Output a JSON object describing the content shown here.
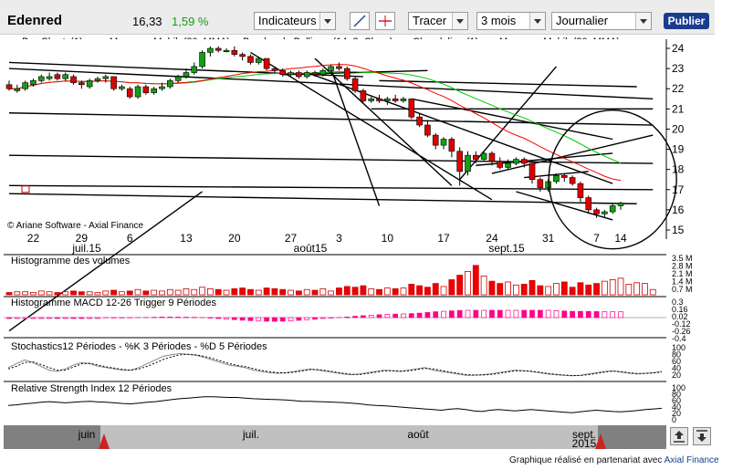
{
  "header": {
    "ticker": "Edenred",
    "price": "16,33",
    "change": "1,59 %",
    "indicators_label": "Indicateurs",
    "draw_label": "Tracer",
    "period": "3 mois",
    "frequency": "Journalier",
    "publish_label": "Publier"
  },
  "legend": [
    {
      "label": "Bar-Charts(1)",
      "color": "#cc0000"
    },
    {
      "label": "Moyenne Mobile(20, MMA)",
      "color": "#ff0000"
    },
    {
      "label": "Bandes de Bollinger(14, 2, Close)",
      "color": ""
    },
    {
      "label": "Chandeliers(1)",
      "color": "#cc0000"
    },
    {
      "label": "Moyenne Mobile(30, MMA)",
      "color": "#00cc00"
    }
  ],
  "watermark": "© Ariane Software - Axial Finance",
  "chart_data": [
    {
      "type": "candlestick",
      "ylim": [
        15,
        24
      ],
      "yticks": [
        15,
        16,
        17,
        18,
        19,
        20,
        21,
        22,
        23,
        24
      ],
      "xticks": [
        "22",
        "29",
        "6",
        "13",
        "20",
        "27",
        "3",
        "10",
        "17",
        "24",
        "31",
        "7",
        "14"
      ],
      "period_labels": [
        "juil.15",
        "août15",
        "sept.15"
      ],
      "candles": [
        {
          "o": 22.2,
          "c": 22.0,
          "h": 22.4,
          "l": 21.9
        },
        {
          "o": 21.9,
          "c": 22.0,
          "h": 22.2,
          "l": 21.8
        },
        {
          "o": 22.0,
          "c": 22.3,
          "h": 22.4,
          "l": 21.9
        },
        {
          "o": 22.2,
          "c": 22.4,
          "h": 22.5,
          "l": 22.1
        },
        {
          "o": 22.4,
          "c": 22.6,
          "h": 22.7,
          "l": 22.3
        },
        {
          "o": 22.5,
          "c": 22.6,
          "h": 22.8,
          "l": 22.4
        },
        {
          "o": 22.7,
          "c": 22.5,
          "h": 22.8,
          "l": 22.4
        },
        {
          "o": 22.5,
          "c": 22.7,
          "h": 22.8,
          "l": 22.4
        },
        {
          "o": 22.6,
          "c": 22.3,
          "h": 22.7,
          "l": 22.2
        },
        {
          "o": 22.3,
          "c": 22.2,
          "h": 22.4,
          "l": 22.0
        },
        {
          "o": 22.1,
          "c": 22.4,
          "h": 22.5,
          "l": 22.0
        },
        {
          "o": 22.4,
          "c": 22.5,
          "h": 22.6,
          "l": 22.3
        },
        {
          "o": 22.5,
          "c": 22.6,
          "h": 22.7,
          "l": 22.3
        },
        {
          "o": 22.6,
          "c": 22.0,
          "h": 22.6,
          "l": 21.9
        },
        {
          "o": 22.0,
          "c": 22.1,
          "h": 22.2,
          "l": 21.9
        },
        {
          "o": 22.0,
          "c": 21.6,
          "h": 22.1,
          "l": 21.5
        },
        {
          "o": 21.6,
          "c": 22.1,
          "h": 22.2,
          "l": 21.5
        },
        {
          "o": 22.1,
          "c": 21.8,
          "h": 22.2,
          "l": 21.7
        },
        {
          "o": 21.8,
          "c": 22.0,
          "h": 22.1,
          "l": 21.7
        },
        {
          "o": 22.0,
          "c": 22.1,
          "h": 22.3,
          "l": 21.9
        },
        {
          "o": 22.1,
          "c": 22.4,
          "h": 22.5,
          "l": 22.0
        },
        {
          "o": 22.4,
          "c": 22.6,
          "h": 22.7,
          "l": 22.3
        },
        {
          "o": 22.6,
          "c": 22.8,
          "h": 23.0,
          "l": 22.5
        },
        {
          "o": 22.8,
          "c": 23.1,
          "h": 23.3,
          "l": 22.7
        },
        {
          "o": 23.1,
          "c": 23.8,
          "h": 23.9,
          "l": 23.0
        },
        {
          "o": 23.8,
          "c": 24.0,
          "h": 24.1,
          "l": 23.6
        },
        {
          "o": 24.0,
          "c": 23.9,
          "h": 24.1,
          "l": 23.8
        },
        {
          "o": 23.9,
          "c": 23.9,
          "h": 24.0,
          "l": 23.8
        },
        {
          "o": 23.9,
          "c": 23.7,
          "h": 24.1,
          "l": 23.6
        },
        {
          "o": 23.7,
          "c": 23.6,
          "h": 23.8,
          "l": 23.4
        },
        {
          "o": 23.6,
          "c": 23.3,
          "h": 23.7,
          "l": 23.2
        },
        {
          "o": 23.3,
          "c": 23.5,
          "h": 23.6,
          "l": 23.2
        },
        {
          "o": 23.5,
          "c": 23.0,
          "h": 23.5,
          "l": 22.9
        },
        {
          "o": 23.0,
          "c": 22.9,
          "h": 23.1,
          "l": 22.8
        },
        {
          "o": 22.9,
          "c": 22.7,
          "h": 23.0,
          "l": 22.6
        },
        {
          "o": 22.7,
          "c": 22.8,
          "h": 22.9,
          "l": 22.6
        },
        {
          "o": 22.8,
          "c": 22.6,
          "h": 22.9,
          "l": 22.5
        },
        {
          "o": 22.6,
          "c": 22.8,
          "h": 22.9,
          "l": 22.5
        },
        {
          "o": 22.8,
          "c": 22.7,
          "h": 22.9,
          "l": 22.6
        },
        {
          "o": 22.7,
          "c": 22.9,
          "h": 23.0,
          "l": 22.6
        },
        {
          "o": 22.9,
          "c": 23.1,
          "h": 23.2,
          "l": 22.8
        },
        {
          "o": 23.1,
          "c": 23.0,
          "h": 23.3,
          "l": 22.9
        },
        {
          "o": 23.0,
          "c": 22.5,
          "h": 23.1,
          "l": 22.4
        },
        {
          "o": 22.5,
          "c": 21.9,
          "h": 22.6,
          "l": 21.8
        },
        {
          "o": 21.9,
          "c": 21.4,
          "h": 22.0,
          "l": 21.3
        },
        {
          "o": 21.4,
          "c": 21.5,
          "h": 21.6,
          "l": 21.3
        },
        {
          "o": 21.5,
          "c": 21.4,
          "h": 21.7,
          "l": 21.3
        },
        {
          "o": 21.4,
          "c": 21.5,
          "h": 21.6,
          "l": 21.2
        },
        {
          "o": 21.5,
          "c": 21.4,
          "h": 21.7,
          "l": 21.3
        },
        {
          "o": 21.4,
          "c": 21.5,
          "h": 21.6,
          "l": 21.3
        },
        {
          "o": 21.5,
          "c": 20.6,
          "h": 21.5,
          "l": 20.5
        },
        {
          "o": 20.6,
          "c": 20.2,
          "h": 20.8,
          "l": 20.1
        },
        {
          "o": 20.2,
          "c": 19.7,
          "h": 20.4,
          "l": 19.6
        },
        {
          "o": 19.7,
          "c": 19.2,
          "h": 19.8,
          "l": 19.0
        },
        {
          "o": 19.2,
          "c": 19.5,
          "h": 19.6,
          "l": 19.0
        },
        {
          "o": 19.5,
          "c": 18.9,
          "h": 19.6,
          "l": 18.6
        },
        {
          "o": 18.9,
          "c": 17.9,
          "h": 19.1,
          "l": 17.2
        },
        {
          "o": 17.9,
          "c": 18.7,
          "h": 18.9,
          "l": 17.7
        },
        {
          "o": 18.7,
          "c": 18.5,
          "h": 18.9,
          "l": 18.3
        },
        {
          "o": 18.5,
          "c": 18.8,
          "h": 18.9,
          "l": 18.4
        },
        {
          "o": 18.8,
          "c": 18.4,
          "h": 18.9,
          "l": 18.2
        },
        {
          "o": 18.4,
          "c": 18.1,
          "h": 18.6,
          "l": 18.0
        },
        {
          "o": 18.1,
          "c": 18.3,
          "h": 18.5,
          "l": 18.0
        },
        {
          "o": 18.3,
          "c": 18.5,
          "h": 18.6,
          "l": 18.2
        },
        {
          "o": 18.5,
          "c": 18.3,
          "h": 18.6,
          "l": 18.1
        },
        {
          "o": 18.3,
          "c": 17.5,
          "h": 18.4,
          "l": 17.3
        },
        {
          "o": 17.5,
          "c": 17.1,
          "h": 17.6,
          "l": 16.9
        },
        {
          "o": 17.1,
          "c": 17.4,
          "h": 17.5,
          "l": 16.9
        },
        {
          "o": 17.4,
          "c": 17.7,
          "h": 17.8,
          "l": 17.3
        },
        {
          "o": 17.7,
          "c": 17.6,
          "h": 17.8,
          "l": 17.4
        },
        {
          "o": 17.6,
          "c": 17.3,
          "h": 17.7,
          "l": 17.2
        },
        {
          "o": 17.3,
          "c": 16.6,
          "h": 17.4,
          "l": 16.4
        },
        {
          "o": 16.6,
          "c": 16.0,
          "h": 16.7,
          "l": 15.8
        },
        {
          "o": 16.0,
          "c": 15.8,
          "h": 16.1,
          "l": 15.6
        },
        {
          "o": 15.8,
          "c": 15.9,
          "h": 16.0,
          "l": 15.6
        },
        {
          "o": 15.9,
          "c": 16.2,
          "h": 16.3,
          "l": 15.8
        },
        {
          "o": 16.2,
          "c": 16.33,
          "h": 16.4,
          "l": 16.0
        }
      ]
    },
    {
      "type": "bar",
      "title": "Histogramme des volumes",
      "yticks": [
        "3.5 M",
        "2.8 M",
        "2.1 M",
        "1.4 M",
        "0.7 M"
      ],
      "values": [
        0.3,
        0.4,
        0.4,
        0.3,
        0.5,
        0.4,
        0.3,
        0.4,
        0.5,
        0.4,
        0.4,
        0.3,
        0.5,
        0.6,
        0.4,
        0.5,
        0.7,
        0.5,
        0.6,
        0.5,
        0.7,
        0.6,
        0.8,
        0.7,
        1.0,
        0.8,
        0.7,
        0.6,
        0.8,
        0.9,
        0.7,
        0.6,
        0.9,
        0.8,
        0.7,
        0.6,
        0.5,
        0.7,
        0.6,
        0.8,
        0.5,
        0.9,
        1.1,
        1.0,
        1.2,
        0.8,
        0.7,
        0.9,
        0.8,
        0.9,
        1.4,
        1.2,
        1.0,
        1.5,
        1.1,
        2.0,
        2.6,
        3.1,
        3.9,
        2.5,
        1.8,
        1.5,
        1.7,
        1.3,
        1.4,
        1.9,
        1.2,
        1.1,
        1.5,
        1.7,
        1.0,
        1.6,
        1.3,
        1.5,
        1.8,
        2.0,
        2.2,
        1.4,
        1.6,
        1.5,
        0.7
      ]
    },
    {
      "type": "bar",
      "title": "Histogramme MACD 12-26   Trigger 9 Périodes",
      "yticks": [
        "0.3",
        "0.16",
        "0.02",
        "-0.12",
        "-0.26",
        "-0.4"
      ]
    },
    {
      "type": "line",
      "title": "Stochastics12 Périodes  -  %K 3 Périodes  -  %D 5 Périodes",
      "yticks": [
        "100",
        "80",
        "60",
        "40",
        "20"
      ],
      "series": [
        {
          "values": [
            40,
            55,
            70,
            60,
            45,
            30,
            25,
            35,
            50,
            60,
            55,
            45,
            40,
            35,
            30,
            30,
            40,
            55,
            70,
            85,
            90,
            95,
            92,
            88,
            80,
            70,
            60,
            50,
            45,
            40,
            30,
            25,
            20,
            18,
            20,
            25,
            30,
            35,
            30,
            25,
            20,
            15,
            12,
            15,
            20,
            25,
            30,
            28,
            25,
            30,
            35,
            40,
            30,
            25,
            20,
            15,
            10,
            10,
            12,
            15,
            20,
            25,
            30,
            28,
            25,
            20,
            15,
            12,
            10,
            8,
            10,
            15,
            20,
            25,
            28,
            22,
            18,
            15,
            18,
            20,
            25
          ]
        },
        {
          "values": [
            35,
            45,
            60,
            62,
            52,
            40,
            30,
            30,
            42,
            55,
            57,
            50,
            43,
            38,
            33,
            30,
            35,
            45,
            58,
            72,
            82,
            90,
            92,
            90,
            84,
            76,
            66,
            56,
            49,
            44,
            36,
            29,
            24,
            20,
            19,
            22,
            27,
            32,
            32,
            28,
            23,
            18,
            14,
            13,
            17,
            22,
            27,
            28,
            26,
            28,
            32,
            37,
            35,
            29,
            23,
            18,
            13,
            11,
            11,
            13,
            17,
            22,
            27,
            28,
            26,
            22,
            17,
            14,
            11,
            9,
            9,
            12,
            17,
            22,
            26,
            24,
            20,
            17,
            17,
            19,
            23
          ]
        }
      ]
    },
    {
      "type": "line",
      "title": "Relative Strength Index 12 Périodes",
      "yticks": [
        "100",
        "80",
        "60",
        "40",
        "20",
        "0"
      ],
      "series": [
        {
          "values": [
            45,
            47,
            50,
            52,
            55,
            57,
            55,
            53,
            55,
            57,
            58,
            56,
            55,
            53,
            51,
            50,
            52,
            55,
            57,
            60,
            63,
            66,
            68,
            70,
            72,
            72,
            71,
            70,
            70,
            68,
            66,
            65,
            64,
            63,
            62,
            60,
            58,
            58,
            57,
            56,
            55,
            54,
            52,
            50,
            47,
            45,
            44,
            42,
            40,
            38,
            36,
            34,
            32,
            30,
            33,
            35,
            32,
            28,
            26,
            30,
            32,
            30,
            28,
            30,
            32,
            30,
            28,
            26,
            24,
            22,
            25,
            28,
            30,
            28,
            26,
            25,
            27,
            29,
            32,
            34,
            36
          ]
        }
      ]
    }
  ],
  "timeline": {
    "labels": [
      "juin",
      "juil.",
      "août",
      "sept.",
      "2015"
    ]
  },
  "footer": {
    "credit_prefix": "Graphique réalisé en partenariat avec",
    "credit_brand": "Axial Finance"
  }
}
